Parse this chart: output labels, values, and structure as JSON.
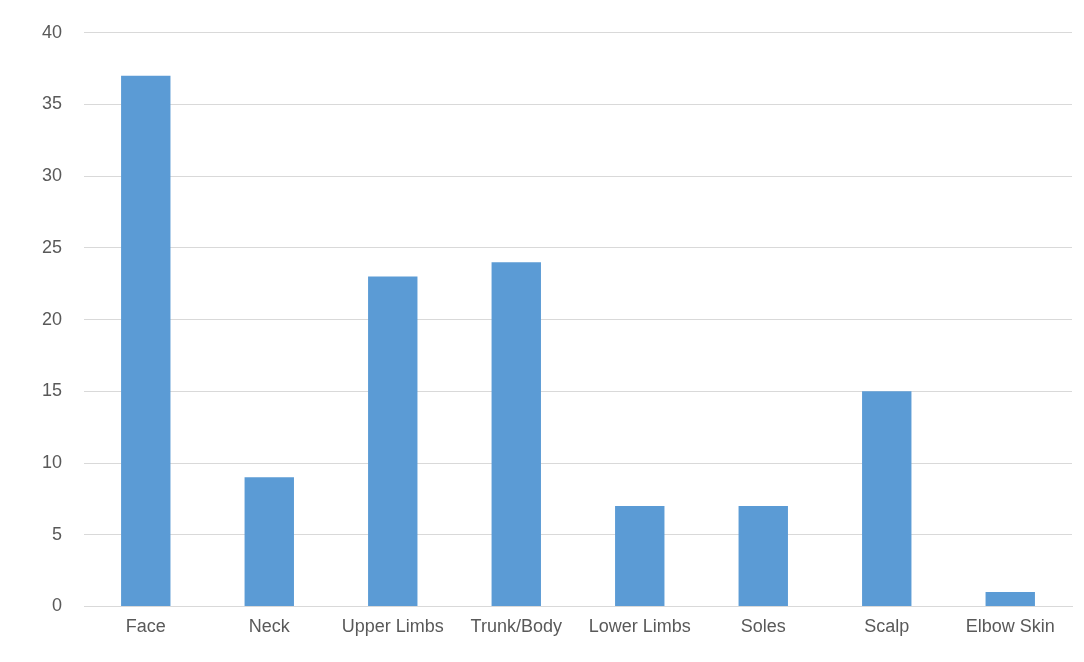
{
  "chart_data": {
    "type": "bar",
    "categories": [
      "Face",
      "Neck",
      "Upper Limbs",
      "Trunk/Body",
      "Lower Limbs",
      "Soles",
      "Scalp",
      "Elbow Skin"
    ],
    "values": [
      37,
      9,
      23,
      24,
      7,
      7,
      15,
      1
    ],
    "color": "#5b9bd5",
    "ylim": [
      0,
      40
    ],
    "yticks": [
      0,
      5,
      10,
      15,
      20,
      25,
      30,
      35,
      40
    ],
    "grid": "y",
    "legend": false
  }
}
